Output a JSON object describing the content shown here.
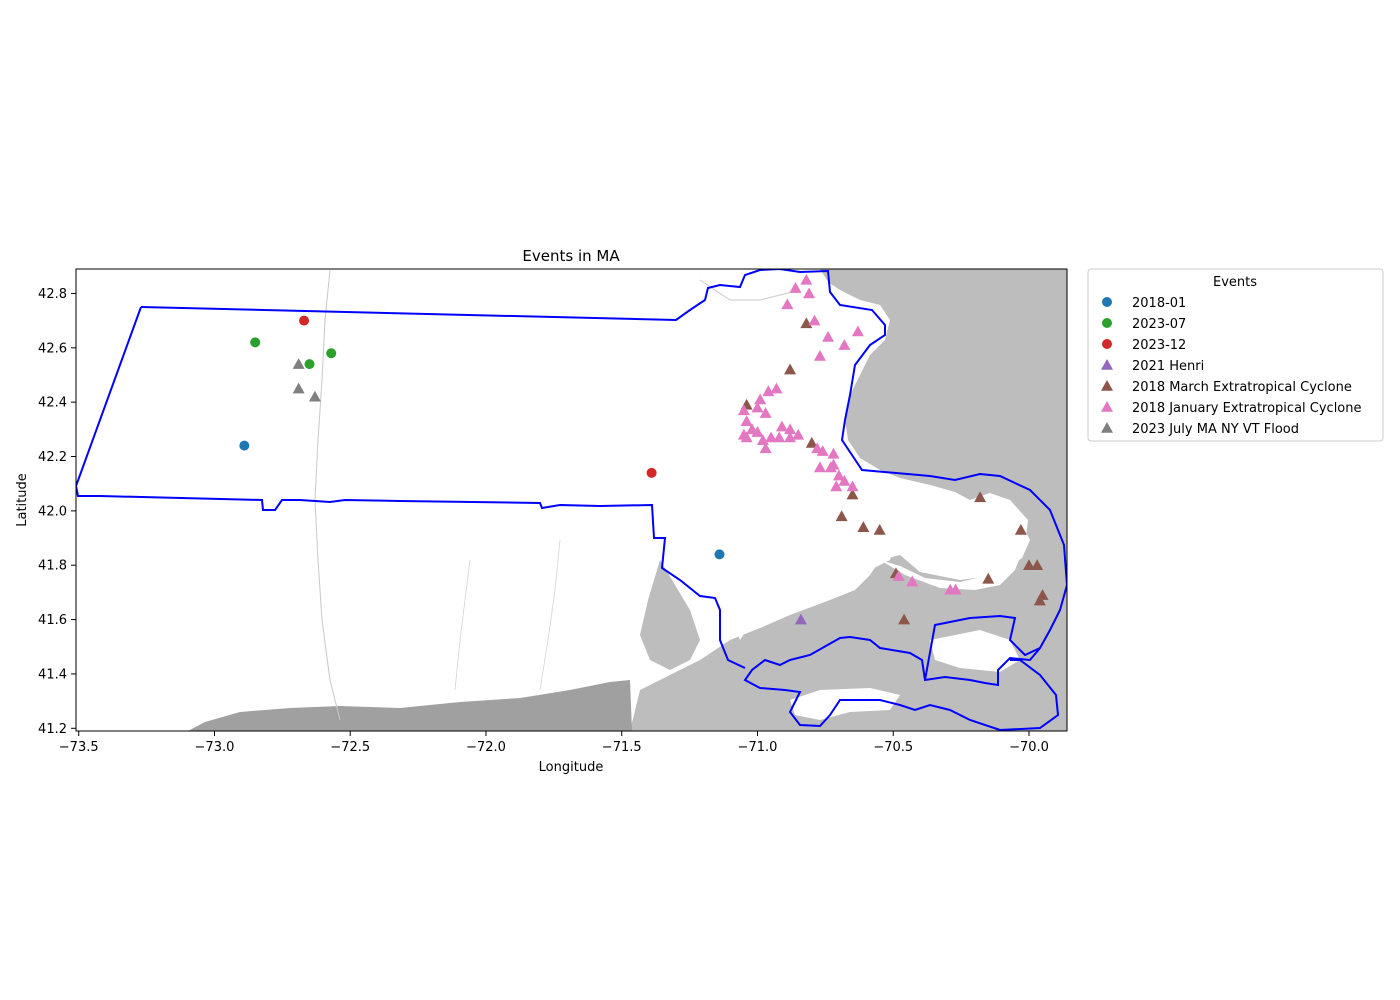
{
  "chart_data": {
    "type": "scatter",
    "title": "Events in MA",
    "xlabel": "Longitude",
    "ylabel": "Latitude",
    "xlim": [
      -73.51,
      -69.86
    ],
    "ylim": [
      41.19,
      42.89
    ],
    "xticks": [
      "−73.5",
      "−73.0",
      "−72.5",
      "−72.0",
      "−71.5",
      "−71.0",
      "−70.5",
      "−70.0"
    ],
    "xtick_values": [
      -73.5,
      -73.0,
      -72.5,
      -72.0,
      -71.5,
      -71.0,
      -70.5,
      -70.0
    ],
    "yticks": [
      "41.2",
      "41.4",
      "41.6",
      "41.8",
      "42.0",
      "42.2",
      "42.4",
      "42.6",
      "42.8"
    ],
    "ytick_values": [
      41.2,
      41.4,
      41.6,
      41.8,
      42.0,
      42.2,
      42.4,
      42.6,
      42.8
    ],
    "grid": false,
    "legend_title": "Events",
    "legend_position": "outside upper right",
    "series": [
      {
        "name": "2018-01",
        "marker": "circle",
        "color": "#1f77b4",
        "points": [
          [
            -72.89,
            42.24
          ],
          [
            -71.14,
            41.84
          ]
        ]
      },
      {
        "name": "2023-07",
        "marker": "circle",
        "color": "#2ca02c",
        "points": [
          [
            -72.85,
            42.62
          ],
          [
            -72.65,
            42.54
          ],
          [
            -72.57,
            42.58
          ]
        ]
      },
      {
        "name": "2023-12",
        "marker": "circle",
        "color": "#d62728",
        "points": [
          [
            -72.67,
            42.7
          ],
          [
            -71.39,
            42.14
          ]
        ]
      },
      {
        "name": "2021 Henri",
        "marker": "triangle",
        "color": "#9467bd",
        "points": [
          [
            -70.84,
            41.6
          ]
        ]
      },
      {
        "name": "2018 March Extratropical Cyclone",
        "marker": "triangle",
        "color": "#8c564b",
        "points": [
          [
            -70.88,
            42.52
          ],
          [
            -70.82,
            42.69
          ],
          [
            -71.04,
            42.39
          ],
          [
            -70.8,
            42.25
          ],
          [
            -70.65,
            42.06
          ],
          [
            -70.69,
            41.98
          ],
          [
            -70.61,
            41.94
          ],
          [
            -70.55,
            41.93
          ],
          [
            -70.49,
            41.77
          ],
          [
            -70.46,
            41.6
          ],
          [
            -70.18,
            42.05
          ],
          [
            -70.15,
            41.75
          ],
          [
            -70.03,
            41.93
          ],
          [
            -70.0,
            41.8
          ],
          [
            -69.97,
            41.8
          ],
          [
            -69.96,
            41.67
          ],
          [
            -69.95,
            41.69
          ]
        ]
      },
      {
        "name": "2018 January Extratropical Cyclone",
        "marker": "triangle",
        "color": "#e377c2",
        "points": [
          [
            -70.82,
            42.85
          ],
          [
            -70.86,
            42.82
          ],
          [
            -70.81,
            42.8
          ],
          [
            -70.89,
            42.76
          ],
          [
            -70.79,
            42.7
          ],
          [
            -70.74,
            42.64
          ],
          [
            -70.68,
            42.61
          ],
          [
            -70.63,
            42.66
          ],
          [
            -70.77,
            42.57
          ],
          [
            -70.93,
            42.45
          ],
          [
            -70.96,
            42.44
          ],
          [
            -70.99,
            42.41
          ],
          [
            -71.0,
            42.38
          ],
          [
            -70.97,
            42.36
          ],
          [
            -71.05,
            42.37
          ],
          [
            -71.04,
            42.33
          ],
          [
            -71.02,
            42.3
          ],
          [
            -71.0,
            42.29
          ],
          [
            -70.91,
            42.31
          ],
          [
            -70.88,
            42.3
          ],
          [
            -71.05,
            42.28
          ],
          [
            -71.04,
            42.27
          ],
          [
            -70.98,
            42.26
          ],
          [
            -70.95,
            42.27
          ],
          [
            -70.92,
            42.27
          ],
          [
            -70.88,
            42.27
          ],
          [
            -70.85,
            42.28
          ],
          [
            -70.97,
            42.23
          ],
          [
            -70.78,
            42.23
          ],
          [
            -70.76,
            42.22
          ],
          [
            -70.72,
            42.21
          ],
          [
            -70.72,
            42.17
          ],
          [
            -70.73,
            42.16
          ],
          [
            -70.77,
            42.16
          ],
          [
            -70.7,
            42.13
          ],
          [
            -70.68,
            42.11
          ],
          [
            -70.71,
            42.09
          ],
          [
            -70.65,
            42.09
          ],
          [
            -70.48,
            41.76
          ],
          [
            -70.43,
            41.74
          ],
          [
            -70.29,
            41.71
          ],
          [
            -70.27,
            41.71
          ]
        ]
      },
      {
        "name": "2023 July MA NY VT Flood",
        "marker": "triangle",
        "color": "#7f7f7f",
        "points": [
          [
            -72.69,
            42.54
          ],
          [
            -72.69,
            42.45
          ],
          [
            -72.63,
            42.42
          ]
        ]
      }
    ]
  }
}
